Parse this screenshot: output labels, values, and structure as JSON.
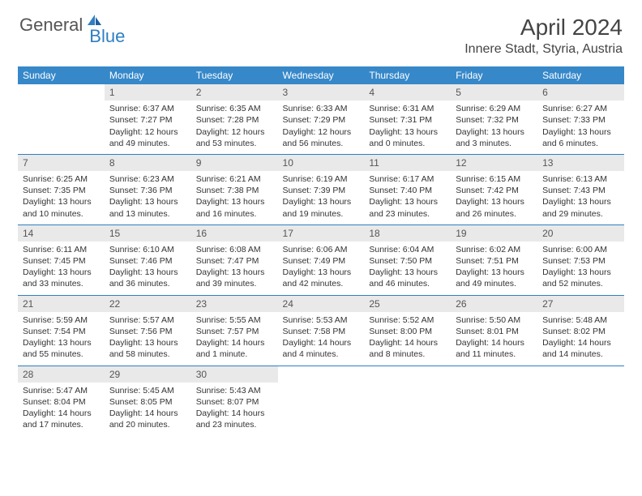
{
  "brand": {
    "name1": "General",
    "name2": "Blue"
  },
  "title": "April 2024",
  "subtitle": "Innere Stadt, Styria, Austria",
  "colors": {
    "header_bg": "#3688c9",
    "line": "#2f7fc2",
    "daynum_bg": "#e9e9e9"
  },
  "weekdays": [
    "Sunday",
    "Monday",
    "Tuesday",
    "Wednesday",
    "Thursday",
    "Friday",
    "Saturday"
  ],
  "weeks": [
    [
      null,
      {
        "n": "1",
        "sr": "Sunrise: 6:37 AM",
        "ss": "Sunset: 7:27 PM",
        "dl": "Daylight: 12 hours and 49 minutes."
      },
      {
        "n": "2",
        "sr": "Sunrise: 6:35 AM",
        "ss": "Sunset: 7:28 PM",
        "dl": "Daylight: 12 hours and 53 minutes."
      },
      {
        "n": "3",
        "sr": "Sunrise: 6:33 AM",
        "ss": "Sunset: 7:29 PM",
        "dl": "Daylight: 12 hours and 56 minutes."
      },
      {
        "n": "4",
        "sr": "Sunrise: 6:31 AM",
        "ss": "Sunset: 7:31 PM",
        "dl": "Daylight: 13 hours and 0 minutes."
      },
      {
        "n": "5",
        "sr": "Sunrise: 6:29 AM",
        "ss": "Sunset: 7:32 PM",
        "dl": "Daylight: 13 hours and 3 minutes."
      },
      {
        "n": "6",
        "sr": "Sunrise: 6:27 AM",
        "ss": "Sunset: 7:33 PM",
        "dl": "Daylight: 13 hours and 6 minutes."
      }
    ],
    [
      {
        "n": "7",
        "sr": "Sunrise: 6:25 AM",
        "ss": "Sunset: 7:35 PM",
        "dl": "Daylight: 13 hours and 10 minutes."
      },
      {
        "n": "8",
        "sr": "Sunrise: 6:23 AM",
        "ss": "Sunset: 7:36 PM",
        "dl": "Daylight: 13 hours and 13 minutes."
      },
      {
        "n": "9",
        "sr": "Sunrise: 6:21 AM",
        "ss": "Sunset: 7:38 PM",
        "dl": "Daylight: 13 hours and 16 minutes."
      },
      {
        "n": "10",
        "sr": "Sunrise: 6:19 AM",
        "ss": "Sunset: 7:39 PM",
        "dl": "Daylight: 13 hours and 19 minutes."
      },
      {
        "n": "11",
        "sr": "Sunrise: 6:17 AM",
        "ss": "Sunset: 7:40 PM",
        "dl": "Daylight: 13 hours and 23 minutes."
      },
      {
        "n": "12",
        "sr": "Sunrise: 6:15 AM",
        "ss": "Sunset: 7:42 PM",
        "dl": "Daylight: 13 hours and 26 minutes."
      },
      {
        "n": "13",
        "sr": "Sunrise: 6:13 AM",
        "ss": "Sunset: 7:43 PM",
        "dl": "Daylight: 13 hours and 29 minutes."
      }
    ],
    [
      {
        "n": "14",
        "sr": "Sunrise: 6:11 AM",
        "ss": "Sunset: 7:45 PM",
        "dl": "Daylight: 13 hours and 33 minutes."
      },
      {
        "n": "15",
        "sr": "Sunrise: 6:10 AM",
        "ss": "Sunset: 7:46 PM",
        "dl": "Daylight: 13 hours and 36 minutes."
      },
      {
        "n": "16",
        "sr": "Sunrise: 6:08 AM",
        "ss": "Sunset: 7:47 PM",
        "dl": "Daylight: 13 hours and 39 minutes."
      },
      {
        "n": "17",
        "sr": "Sunrise: 6:06 AM",
        "ss": "Sunset: 7:49 PM",
        "dl": "Daylight: 13 hours and 42 minutes."
      },
      {
        "n": "18",
        "sr": "Sunrise: 6:04 AM",
        "ss": "Sunset: 7:50 PM",
        "dl": "Daylight: 13 hours and 46 minutes."
      },
      {
        "n": "19",
        "sr": "Sunrise: 6:02 AM",
        "ss": "Sunset: 7:51 PM",
        "dl": "Daylight: 13 hours and 49 minutes."
      },
      {
        "n": "20",
        "sr": "Sunrise: 6:00 AM",
        "ss": "Sunset: 7:53 PM",
        "dl": "Daylight: 13 hours and 52 minutes."
      }
    ],
    [
      {
        "n": "21",
        "sr": "Sunrise: 5:59 AM",
        "ss": "Sunset: 7:54 PM",
        "dl": "Daylight: 13 hours and 55 minutes."
      },
      {
        "n": "22",
        "sr": "Sunrise: 5:57 AM",
        "ss": "Sunset: 7:56 PM",
        "dl": "Daylight: 13 hours and 58 minutes."
      },
      {
        "n": "23",
        "sr": "Sunrise: 5:55 AM",
        "ss": "Sunset: 7:57 PM",
        "dl": "Daylight: 14 hours and 1 minute."
      },
      {
        "n": "24",
        "sr": "Sunrise: 5:53 AM",
        "ss": "Sunset: 7:58 PM",
        "dl": "Daylight: 14 hours and 4 minutes."
      },
      {
        "n": "25",
        "sr": "Sunrise: 5:52 AM",
        "ss": "Sunset: 8:00 PM",
        "dl": "Daylight: 14 hours and 8 minutes."
      },
      {
        "n": "26",
        "sr": "Sunrise: 5:50 AM",
        "ss": "Sunset: 8:01 PM",
        "dl": "Daylight: 14 hours and 11 minutes."
      },
      {
        "n": "27",
        "sr": "Sunrise: 5:48 AM",
        "ss": "Sunset: 8:02 PM",
        "dl": "Daylight: 14 hours and 14 minutes."
      }
    ],
    [
      {
        "n": "28",
        "sr": "Sunrise: 5:47 AM",
        "ss": "Sunset: 8:04 PM",
        "dl": "Daylight: 14 hours and 17 minutes."
      },
      {
        "n": "29",
        "sr": "Sunrise: 5:45 AM",
        "ss": "Sunset: 8:05 PM",
        "dl": "Daylight: 14 hours and 20 minutes."
      },
      {
        "n": "30",
        "sr": "Sunrise: 5:43 AM",
        "ss": "Sunset: 8:07 PM",
        "dl": "Daylight: 14 hours and 23 minutes."
      },
      null,
      null,
      null,
      null
    ]
  ]
}
